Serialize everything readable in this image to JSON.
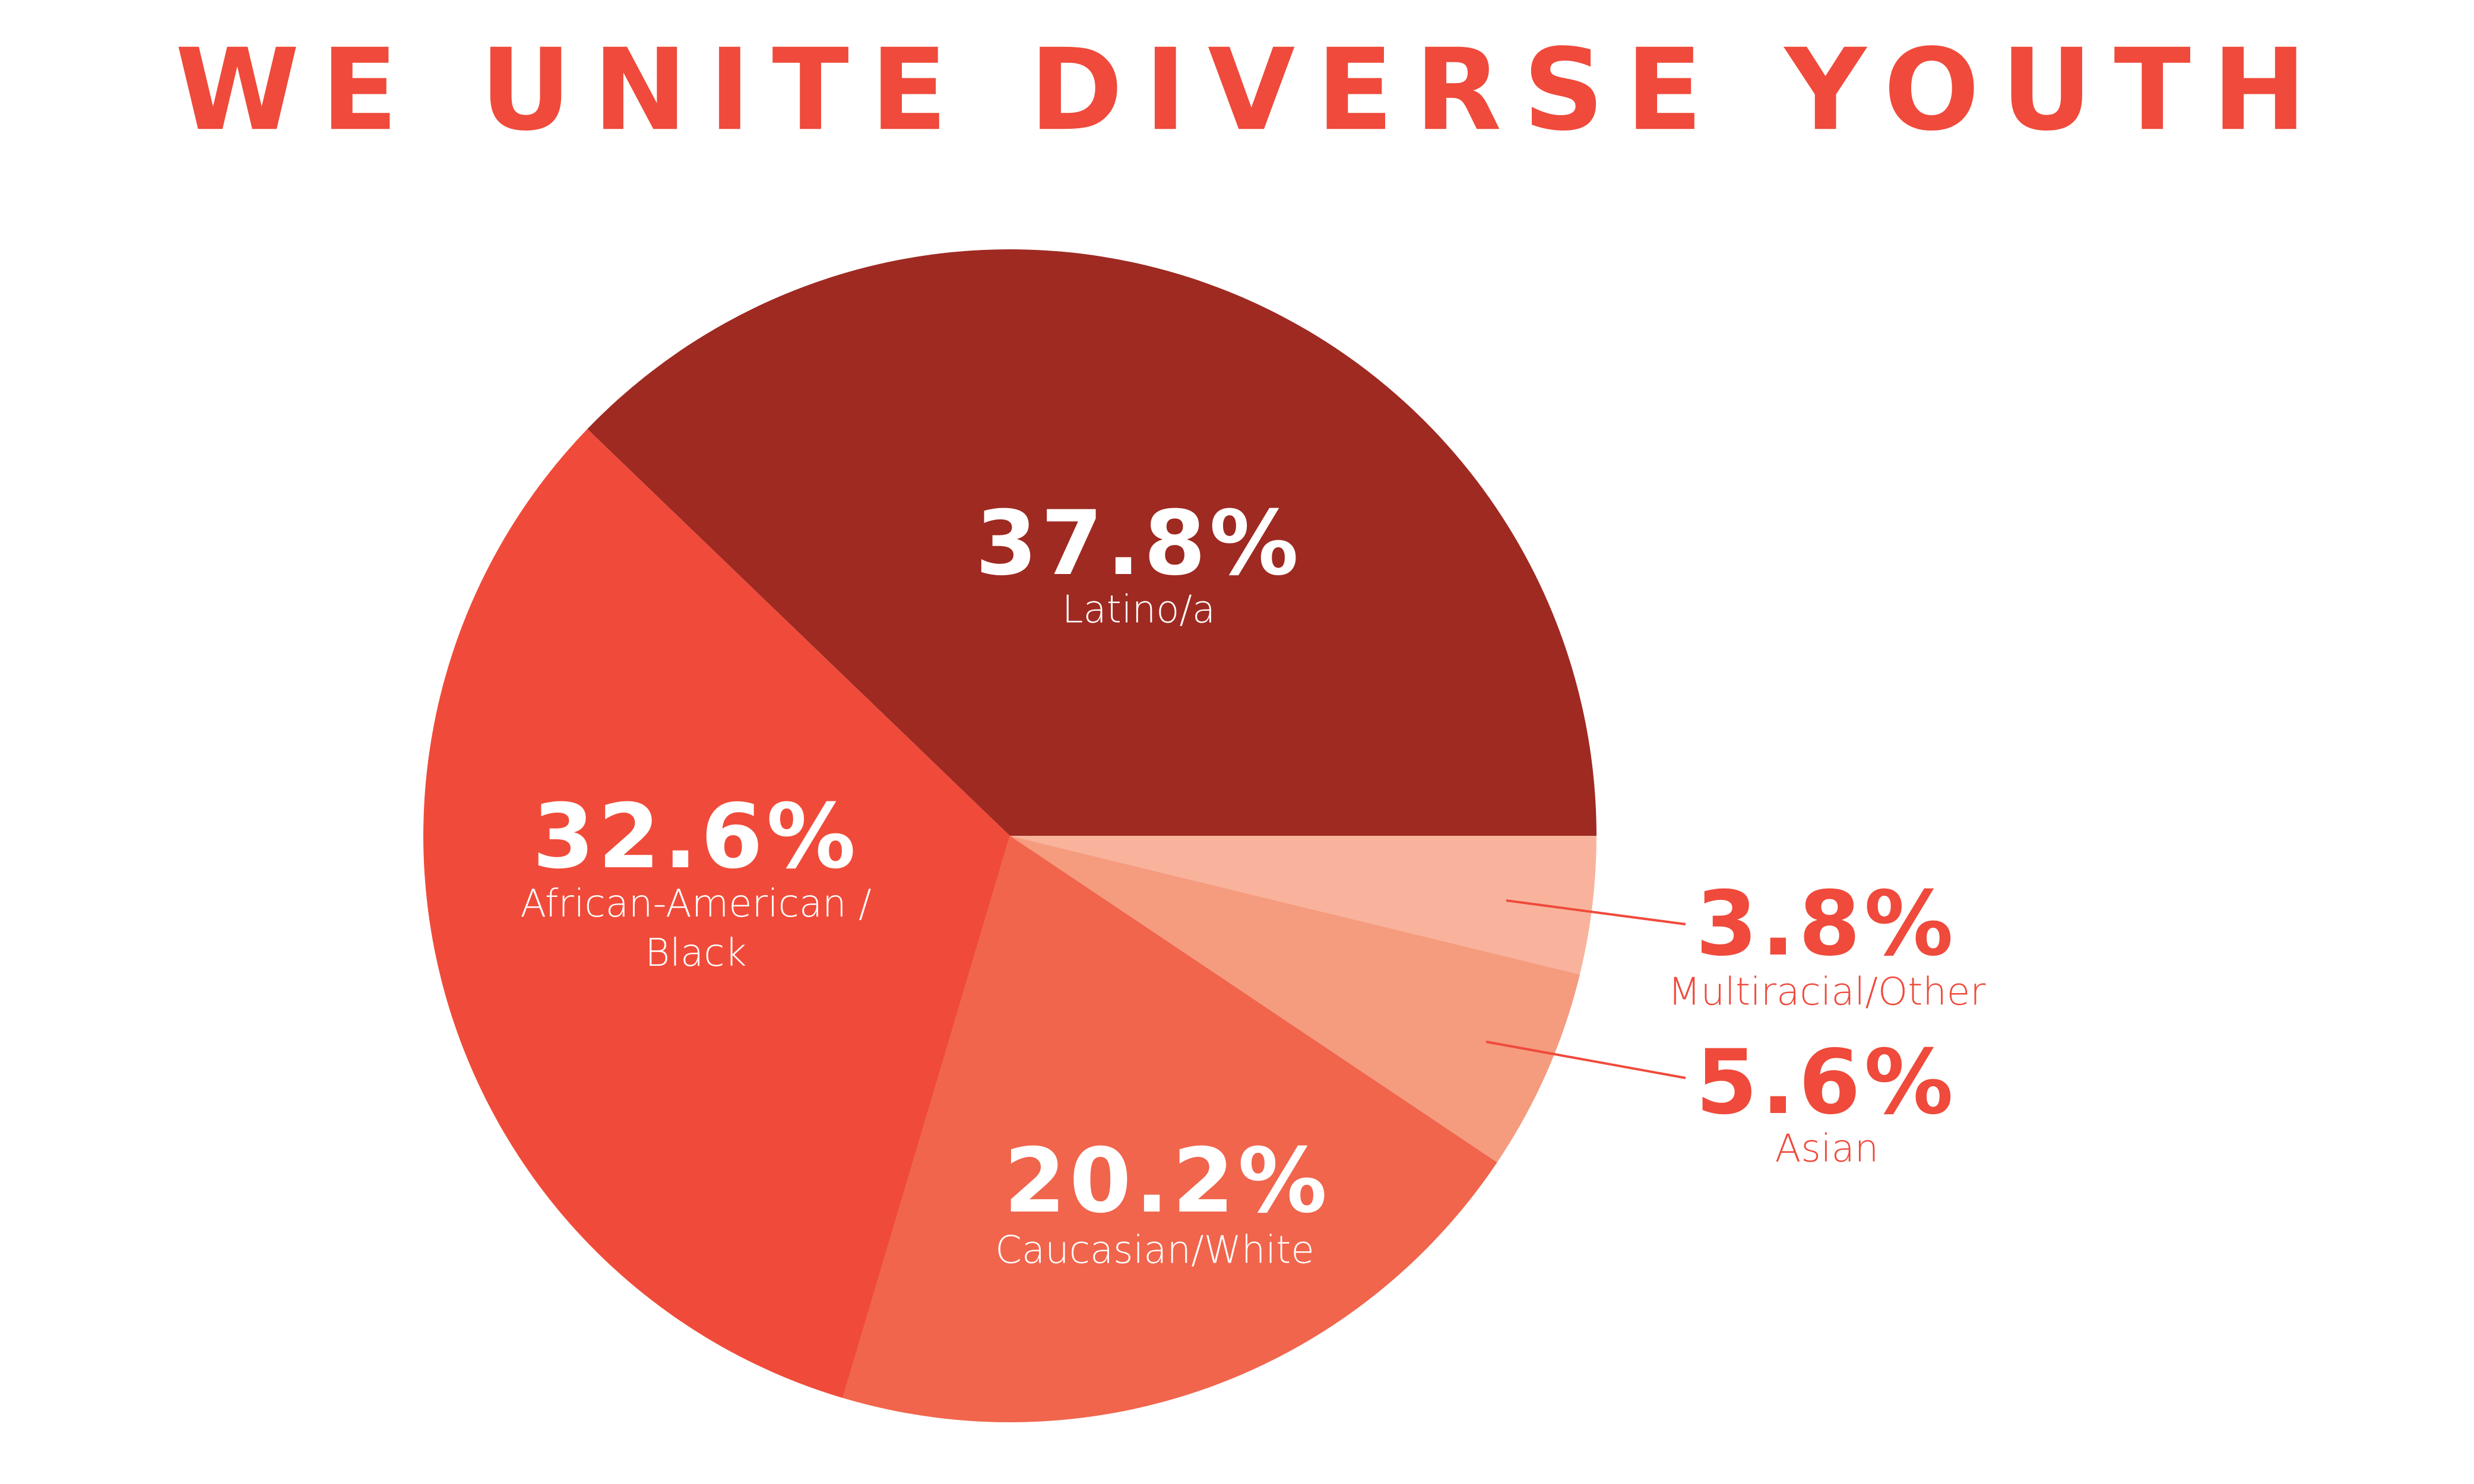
{
  "chart_data": {
    "type": "pie",
    "title": "WE UNITE DIVERSE YOUTH",
    "categories": [
      "Latino/a",
      "African-American / Black",
      "Caucasian/White",
      "Asian",
      "Multiracial/Other"
    ],
    "values": [
      37.8,
      32.6,
      20.2,
      5.6,
      3.8
    ],
    "value_labels": [
      "37.8%",
      "32.6%",
      "20.2%",
      "5.6%",
      "3.8%"
    ],
    "colors": [
      "#9e2a22",
      "#f04b3a",
      "#f0654c",
      "#f59b7e",
      "#f9b39c"
    ]
  }
}
